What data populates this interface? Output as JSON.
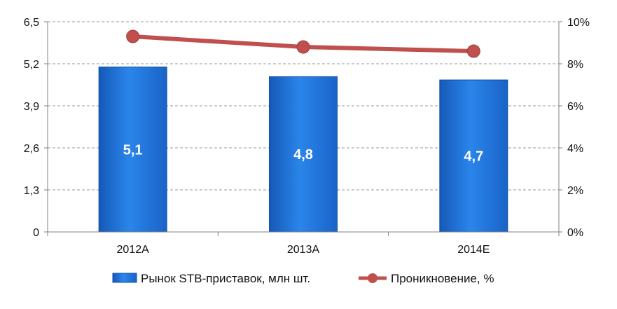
{
  "chart_data": {
    "type": "bar",
    "categories": [
      "2012A",
      "2013A",
      "2014E"
    ],
    "series": [
      {
        "name": "Рынок STB-приставок, млн шт.",
        "kind": "bar",
        "axis": "left",
        "values": [
          5.1,
          4.8,
          4.7
        ],
        "data_labels": [
          "5,1",
          "4,8",
          "4,7"
        ],
        "color": "#1f6fd1"
      },
      {
        "name": "Проникновение, %",
        "kind": "line",
        "axis": "right",
        "values": [
          9.3,
          8.8,
          8.6
        ],
        "color": "#c0504d"
      }
    ],
    "y_left": {
      "min": 0,
      "max": 6.5,
      "ticks": [
        0,
        1.3,
        2.6,
        3.9,
        5.2,
        6.5
      ],
      "tick_labels": [
        "0",
        "1,3",
        "2,6",
        "3,9",
        "5,2",
        "6,5"
      ]
    },
    "y_right": {
      "min": 0,
      "max": 10,
      "ticks": [
        0,
        2,
        4,
        6,
        8,
        10
      ],
      "tick_labels": [
        "0%",
        "2%",
        "4%",
        "6%",
        "8%",
        "10%"
      ]
    },
    "title": "",
    "xlabel": "",
    "ylabel": "",
    "grid": "horizontal-dashed",
    "legend_position": "bottom"
  }
}
